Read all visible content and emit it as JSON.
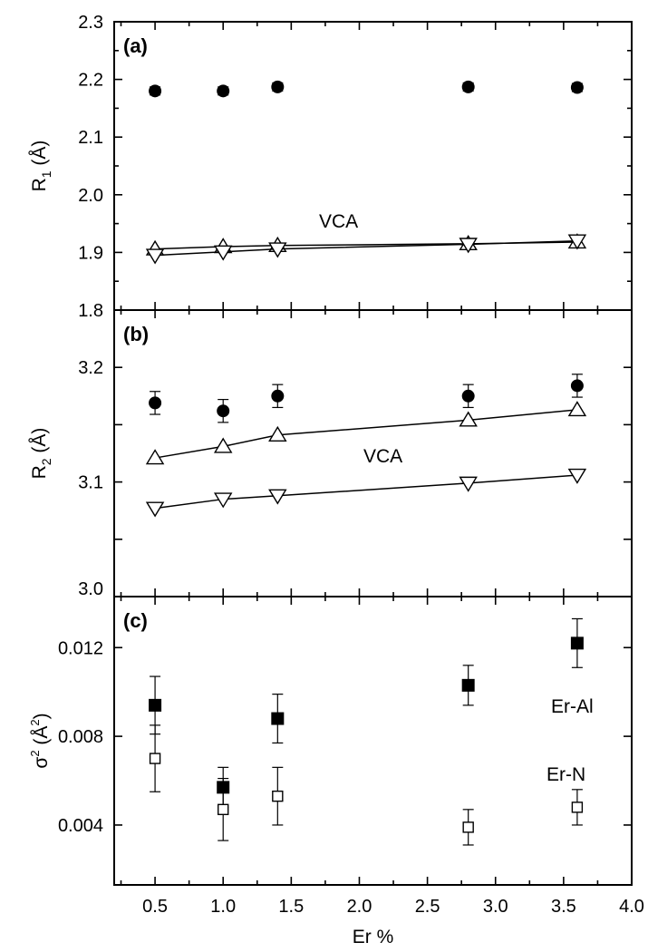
{
  "chart_data": {
    "type": "scatter",
    "x": [
      0.5,
      1.0,
      1.4,
      2.8,
      3.6
    ],
    "xlabel": "Er %",
    "xlim": [
      0.2,
      4.0
    ],
    "xticks": [
      "0.5",
      "1.0",
      "1.5",
      "2.0",
      "2.5",
      "3.0",
      "3.5",
      "4.0"
    ],
    "panels": [
      {
        "label": "(a)",
        "ylabel_main": "R",
        "ylabel_sub": "1",
        "ylabel_unit": " (Å)",
        "ylim": [
          1.8,
          2.3
        ],
        "yticks": [
          "1.8",
          "1.9",
          "2.0",
          "2.1",
          "2.2",
          "2.3"
        ],
        "annotation": "VCA",
        "series": [
          {
            "marker": "filled-circle",
            "values": [
              2.18,
              2.18,
              2.187,
              2.187,
              2.186
            ],
            "errors": [
              0.007,
              0.007,
              0.007,
              0.007,
              0.007
            ]
          },
          {
            "marker": "open-triangle-up",
            "line": true,
            "values": [
              1.906,
              1.91,
              1.912,
              1.915,
              1.918
            ]
          },
          {
            "marker": "open-triangle-down",
            "line": true,
            "values": [
              1.895,
              1.901,
              1.906,
              1.914,
              1.92
            ]
          }
        ]
      },
      {
        "label": "(b)",
        "ylabel_main": "R",
        "ylabel_sub": "2",
        "ylabel_unit": " (Å)",
        "ylim": [
          3.0,
          3.25
        ],
        "yticks": [
          "3.0",
          "",
          "3.1",
          "",
          "3.2"
        ],
        "annotation": "VCA",
        "series": [
          {
            "marker": "filled-circle",
            "values": [
              3.169,
              3.162,
              3.175,
              3.175,
              3.184
            ],
            "errors": [
              0.01,
              0.01,
              0.01,
              0.01,
              0.01
            ]
          },
          {
            "marker": "open-triangle-up",
            "line": true,
            "values": [
              3.121,
              3.131,
              3.141,
              3.154,
              3.163
            ]
          },
          {
            "marker": "open-triangle-down",
            "line": true,
            "values": [
              3.077,
              3.085,
              3.088,
              3.099,
              3.106
            ]
          }
        ]
      },
      {
        "label": "(c)",
        "ylabel_main": "σ",
        "ylabel_sup": "2",
        "ylabel_unit": " (Å",
        "ylabel_unit_sup": "2",
        "ylabel_close": ")",
        "ylim": [
          0.0013,
          0.0143
        ],
        "yticks": [
          "0.004",
          "0.008",
          "0.012"
        ],
        "series": [
          {
            "name": "Er-Al",
            "marker": "filled-square",
            "values": [
              0.0094,
              0.0057,
              0.0088,
              0.0103,
              0.0122
            ],
            "errors": [
              0.0013,
              0.0009,
              0.0011,
              0.0009,
              0.0011
            ]
          },
          {
            "name": "Er-N",
            "marker": "open-square",
            "values": [
              0.007,
              0.0047,
              0.0053,
              0.0039,
              0.0048
            ],
            "errors": [
              0.0015,
              0.0014,
              0.0013,
              0.0008,
              0.0008
            ]
          }
        ]
      }
    ]
  }
}
